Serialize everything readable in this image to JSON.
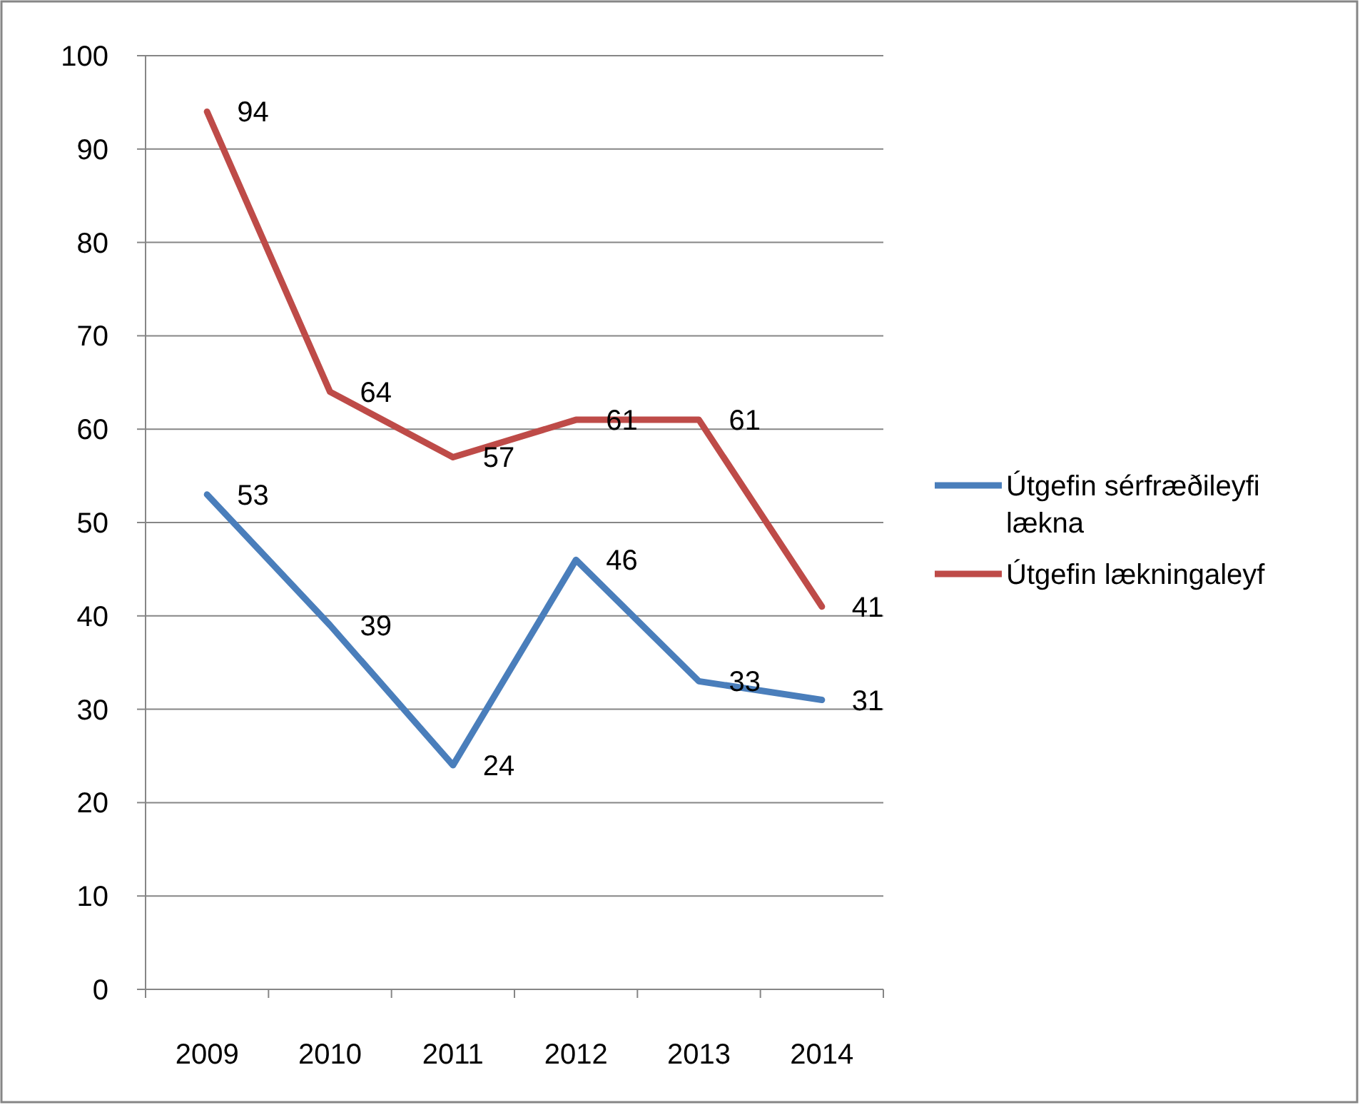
{
  "chart_data": {
    "type": "line",
    "categories": [
      "2009",
      "2010",
      "2011",
      "2012",
      "2013",
      "2014"
    ],
    "series": [
      {
        "name": "Útgefin sérfræðileyfi lækna",
        "color": "#4a7ebb",
        "values": [
          53,
          39,
          24,
          46,
          33,
          31
        ]
      },
      {
        "name": "Útgefin lækningaleyf",
        "color": "#be4b48",
        "values": [
          94,
          64,
          57,
          61,
          61,
          41
        ]
      }
    ],
    "ylim": [
      0,
      100
    ],
    "yticks": [
      0,
      10,
      20,
      30,
      40,
      50,
      60,
      70,
      80,
      90,
      100
    ],
    "grid": "y",
    "legend": "right",
    "data_labels": true,
    "marker": "none",
    "line_style": "solid"
  }
}
